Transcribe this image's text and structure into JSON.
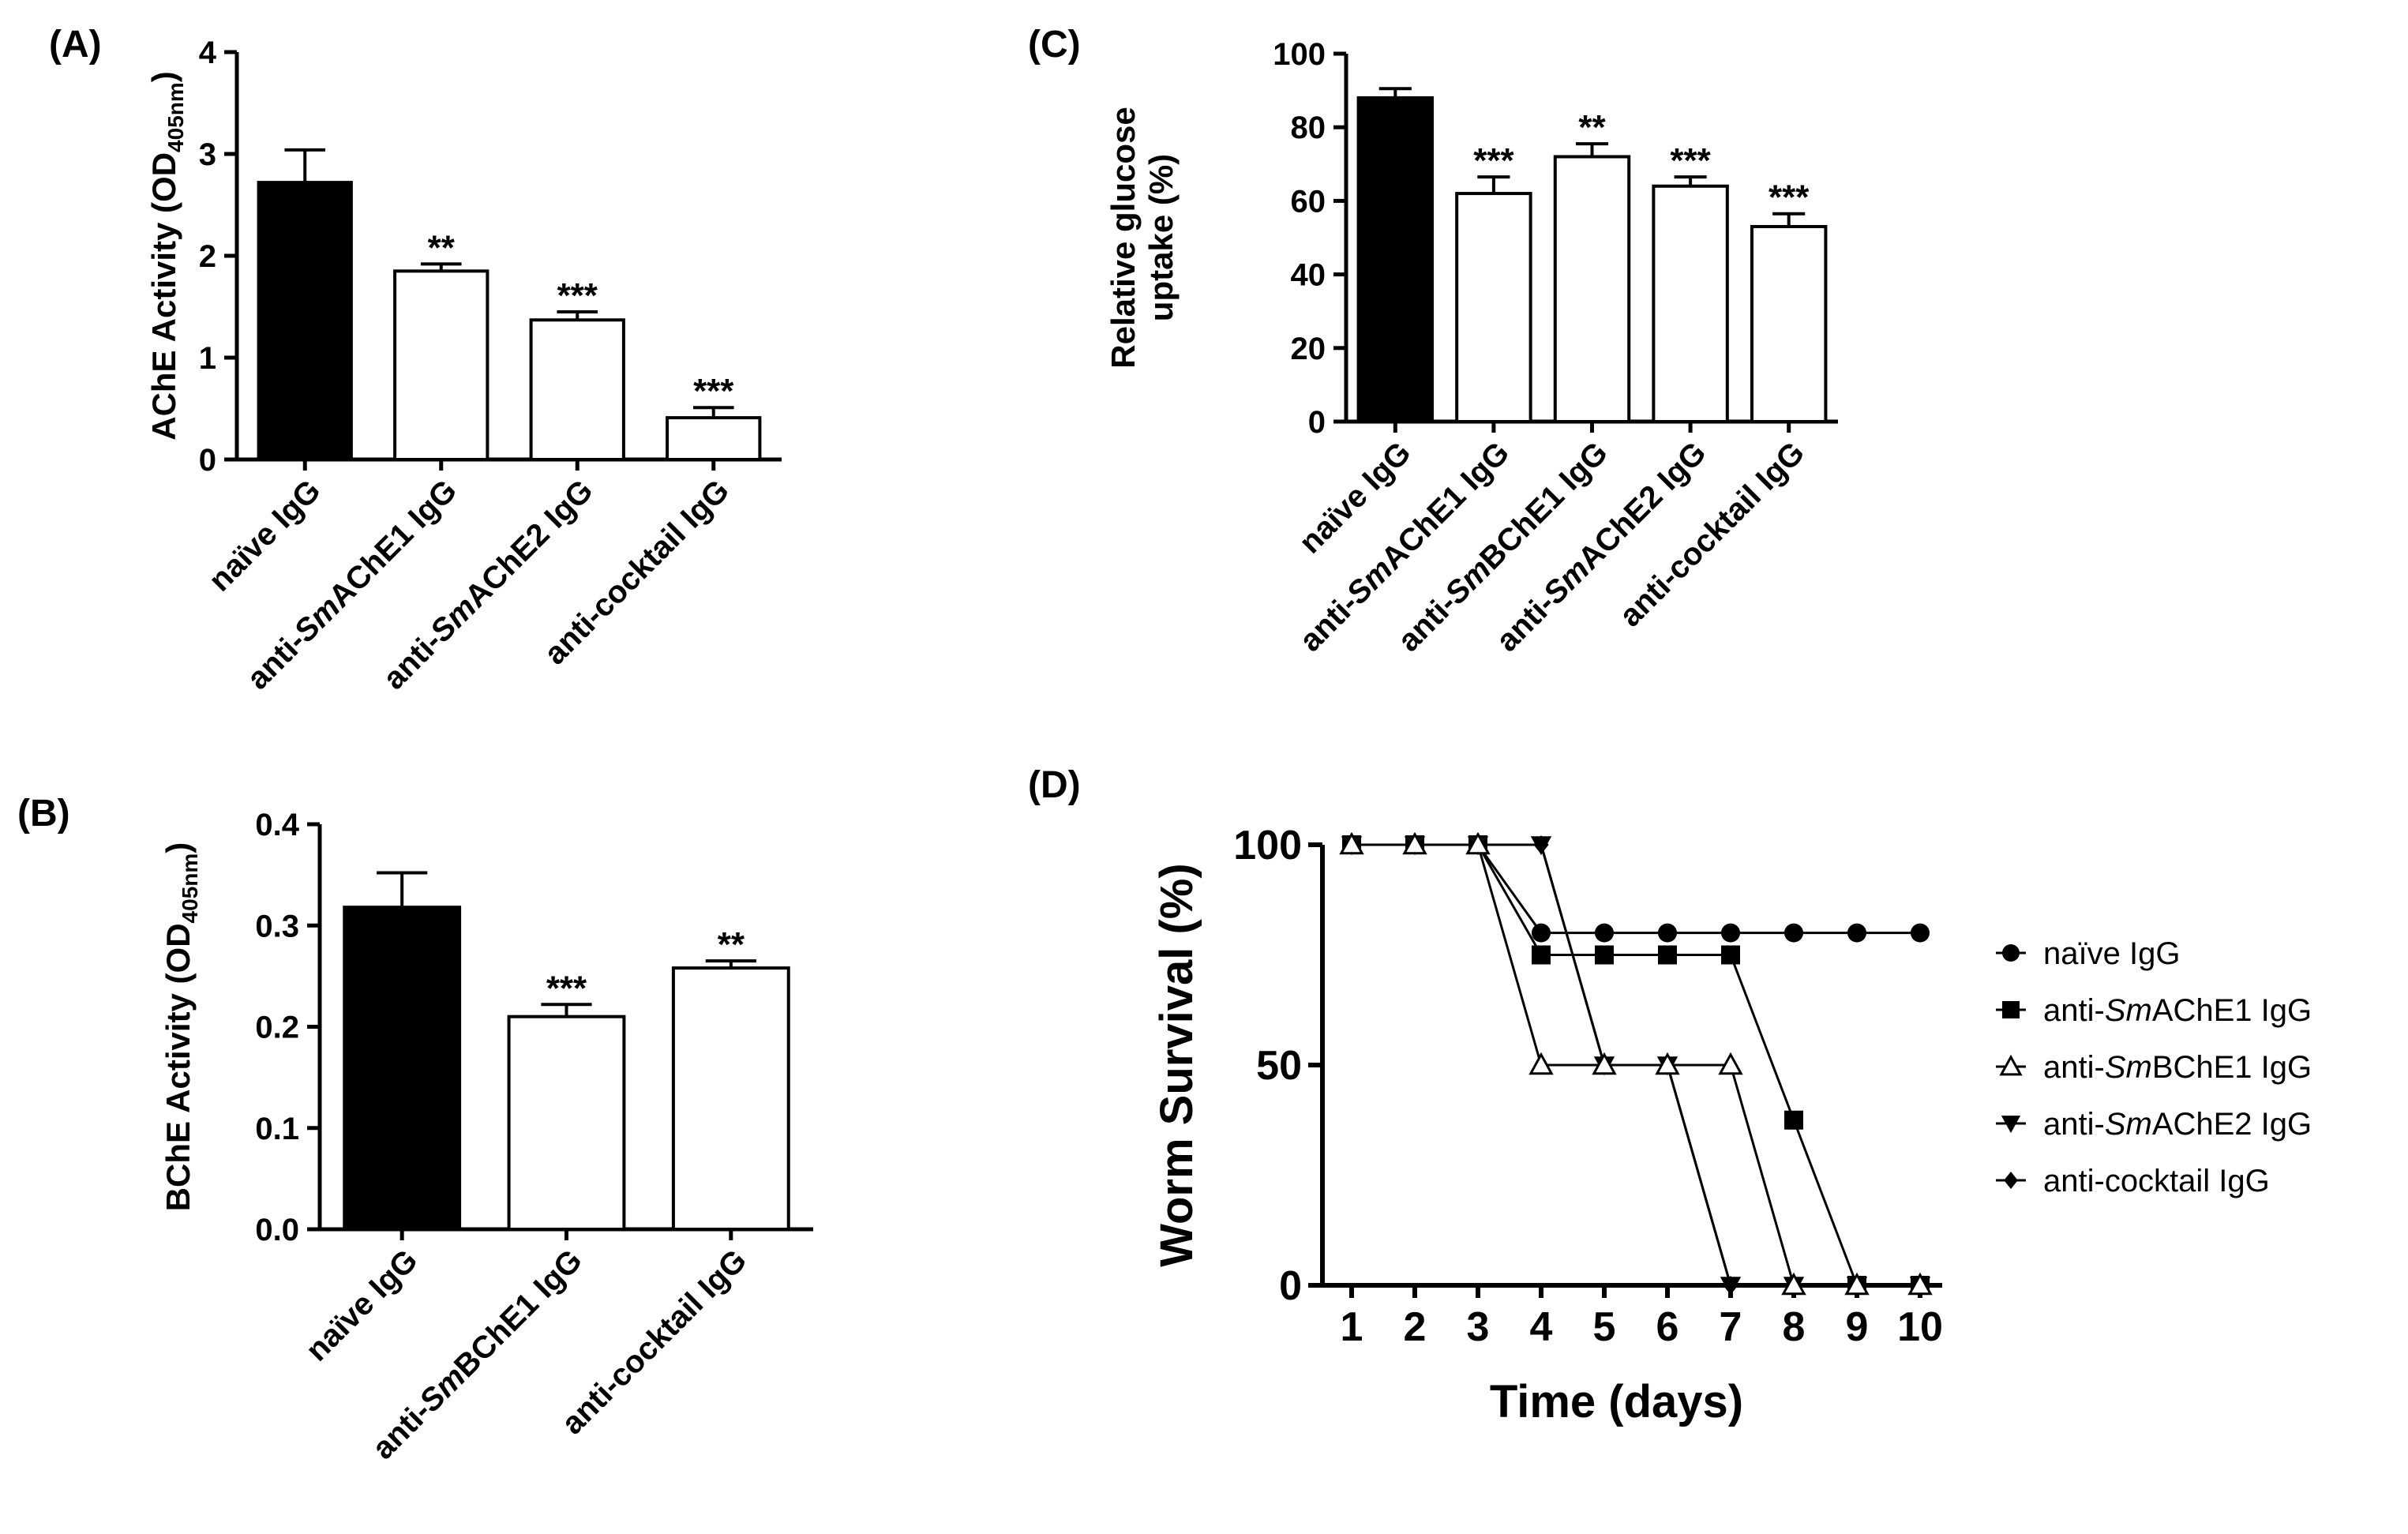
{
  "chart_data": [
    {
      "panel": "(A)",
      "type": "bar",
      "ylabel": "AChE Activity (OD",
      "ylabel_sub": "405nm",
      "ylabel_close": ")",
      "ylim": [
        0,
        4
      ],
      "yticks": [
        "0",
        "1",
        "2",
        "3",
        "4"
      ],
      "categories": [
        {
          "pre": "naïve IgG",
          "it": "",
          "post": ""
        },
        {
          "pre": "anti-",
          "it": "Sm",
          "post": "AChE1 IgG"
        },
        {
          "pre": "anti-",
          "it": "Sm",
          "post": "AChE2 IgG"
        },
        {
          "pre": "anti-cocktail IgG",
          "it": "",
          "post": ""
        }
      ],
      "values": [
        2.72,
        1.85,
        1.37,
        0.41
      ],
      "errors": [
        0.32,
        0.07,
        0.08,
        0.1
      ],
      "fill": [
        "#000000",
        "#ffffff",
        "#ffffff",
        "#ffffff"
      ],
      "significance": [
        "",
        "**",
        "***",
        "***"
      ]
    },
    {
      "panel": "(B)",
      "type": "bar",
      "ylabel": "BChE Activity (OD",
      "ylabel_sub": "405nm",
      "ylabel_close": ")",
      "ylim": [
        0,
        0.4
      ],
      "yticks": [
        "0.0",
        "0.1",
        "0.2",
        "0.3",
        "0.4"
      ],
      "categories": [
        {
          "pre": "naïve IgG",
          "it": "",
          "post": ""
        },
        {
          "pre": "anti-",
          "it": "Sm",
          "post": "BChE1 IgG"
        },
        {
          "pre": "anti-cocktail IgG",
          "it": "",
          "post": ""
        }
      ],
      "values": [
        0.318,
        0.21,
        0.258
      ],
      "errors": [
        0.034,
        0.012,
        0.007
      ],
      "fill": [
        "#000000",
        "#ffffff",
        "#ffffff"
      ],
      "significance": [
        "",
        "***",
        "**"
      ]
    },
    {
      "panel": "(C)",
      "type": "bar",
      "ylabel_line1": "Relative glucose",
      "ylabel_line2": "uptake (%)",
      "ylim": [
        0,
        100
      ],
      "yticks": [
        "0",
        "20",
        "40",
        "60",
        "80",
        "100"
      ],
      "categories": [
        {
          "pre": "naïve IgG",
          "it": "",
          "post": ""
        },
        {
          "pre": "anti-",
          "it": "Sm",
          "post": "AChE1 IgG"
        },
        {
          "pre": "anti-",
          "it": "Sm",
          "post": "BChE1 IgG"
        },
        {
          "pre": "anti-",
          "it": "Sm",
          "post": "AChE2 IgG"
        },
        {
          "pre": "anti-cocktail IgG",
          "it": "",
          "post": ""
        }
      ],
      "values": [
        88,
        62,
        72,
        64,
        53
      ],
      "errors": [
        2.5,
        4.5,
        3.5,
        2.5,
        3.5
      ],
      "fill": [
        "#000000",
        "#ffffff",
        "#ffffff",
        "#ffffff",
        "#ffffff"
      ],
      "significance": [
        "",
        "***",
        "**",
        "***",
        "***"
      ]
    },
    {
      "panel": "(D)",
      "type": "line",
      "xlabel": "Time (days)",
      "ylabel": "Worm Survival (%)",
      "xlim": [
        1,
        10
      ],
      "ylim": [
        0,
        100
      ],
      "xticks": [
        "1",
        "2",
        "3",
        "4",
        "5",
        "6",
        "7",
        "8",
        "9",
        "10"
      ],
      "yticks": [
        "0",
        "50",
        "100"
      ],
      "x": [
        1,
        2,
        3,
        4,
        5,
        6,
        7,
        8,
        9,
        10
      ],
      "series": [
        {
          "legend_pre": "naïve IgG",
          "legend_it": "",
          "legend_post": "",
          "marker": "circle",
          "values": [
            100,
            100,
            100,
            80,
            80,
            80,
            80,
            80,
            80,
            80
          ]
        },
        {
          "legend_pre": "anti-",
          "legend_it": "Sm",
          "legend_post": "AChE1 IgG",
          "marker": "square",
          "values": [
            100,
            100,
            100,
            75,
            75,
            75,
            75,
            37.5,
            0,
            0
          ]
        },
        {
          "legend_pre": "anti-",
          "legend_it": "Sm",
          "legend_post": "BChE1 IgG",
          "marker": "triangle-open",
          "values": [
            100,
            100,
            100,
            50,
            50,
            50,
            50,
            0,
            0,
            0
          ]
        },
        {
          "legend_pre": "anti-",
          "legend_it": "Sm",
          "legend_post": "AChE2 IgG",
          "marker": "triangle-down",
          "values": [
            100,
            100,
            100,
            100,
            50,
            50,
            0,
            0,
            0,
            0
          ]
        },
        {
          "legend_pre": "anti-cocktail IgG",
          "legend_it": "",
          "legend_post": "",
          "marker": "diamond",
          "values": [
            100,
            100,
            100,
            100,
            50,
            50,
            0,
            0,
            0,
            0
          ]
        }
      ]
    }
  ]
}
